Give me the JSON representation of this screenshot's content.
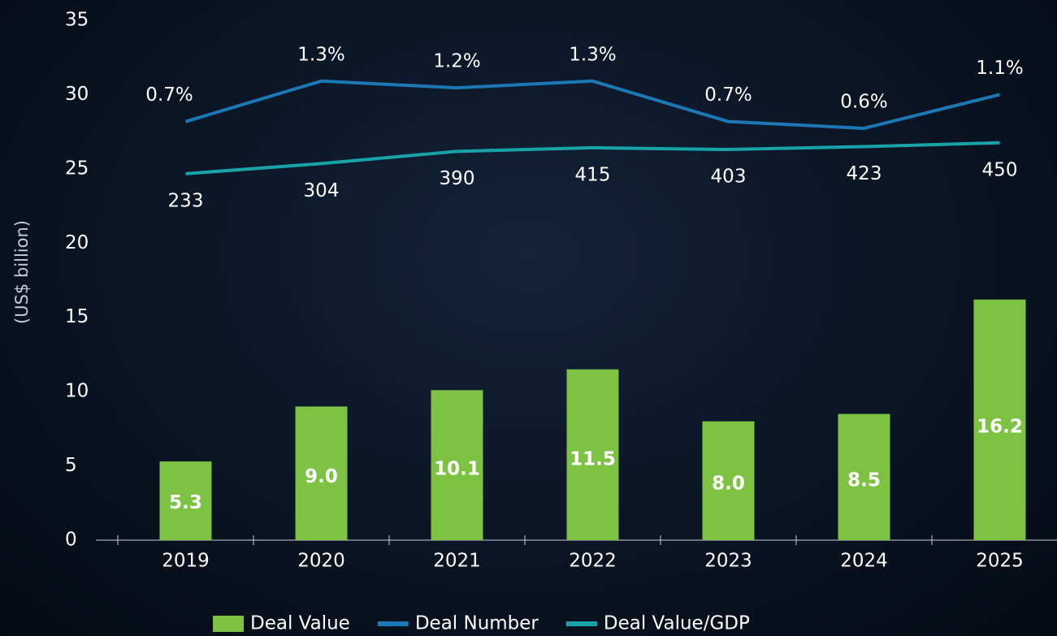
{
  "chart_data": {
    "type": "bar",
    "y_label": "(US$ billion)",
    "categories": [
      "2019",
      "2020",
      "2021",
      "2022",
      "2023",
      "2024",
      "2025"
    ],
    "ylim": [
      0,
      35
    ],
    "yticks": [
      0,
      5,
      10,
      15,
      20,
      25,
      30,
      35
    ],
    "y2lim": [
      -5.5,
      2.2
    ],
    "y3lim": [
      -2340,
      1310
    ],
    "series": [
      {
        "name": "Deal Value",
        "type": "bar",
        "color": "#7dc242",
        "values": [
          5.3,
          9.0,
          10.1,
          11.5,
          8.0,
          8.5,
          16.2
        ],
        "value_labels": [
          "5.3",
          "9.0",
          "10.1",
          "11.5",
          "8.0",
          "8.5",
          "16.2"
        ]
      },
      {
        "name": "Deal Number",
        "type": "line",
        "color": "#1b78b4",
        "axis": "y2",
        "values": [
          0.7,
          1.3,
          1.2,
          1.3,
          0.7,
          0.6,
          1.1
        ],
        "value_labels": [
          "0.7%",
          "1.3%",
          "1.2%",
          "1.3%",
          "0.7%",
          "0.6%",
          "1.1%"
        ]
      },
      {
        "name": "Deal Value/GDP",
        "type": "line",
        "color": "#17a3a8",
        "axis": "y3",
        "values": [
          233,
          304,
          390,
          415,
          403,
          423,
          450
        ]
      }
    ]
  }
}
